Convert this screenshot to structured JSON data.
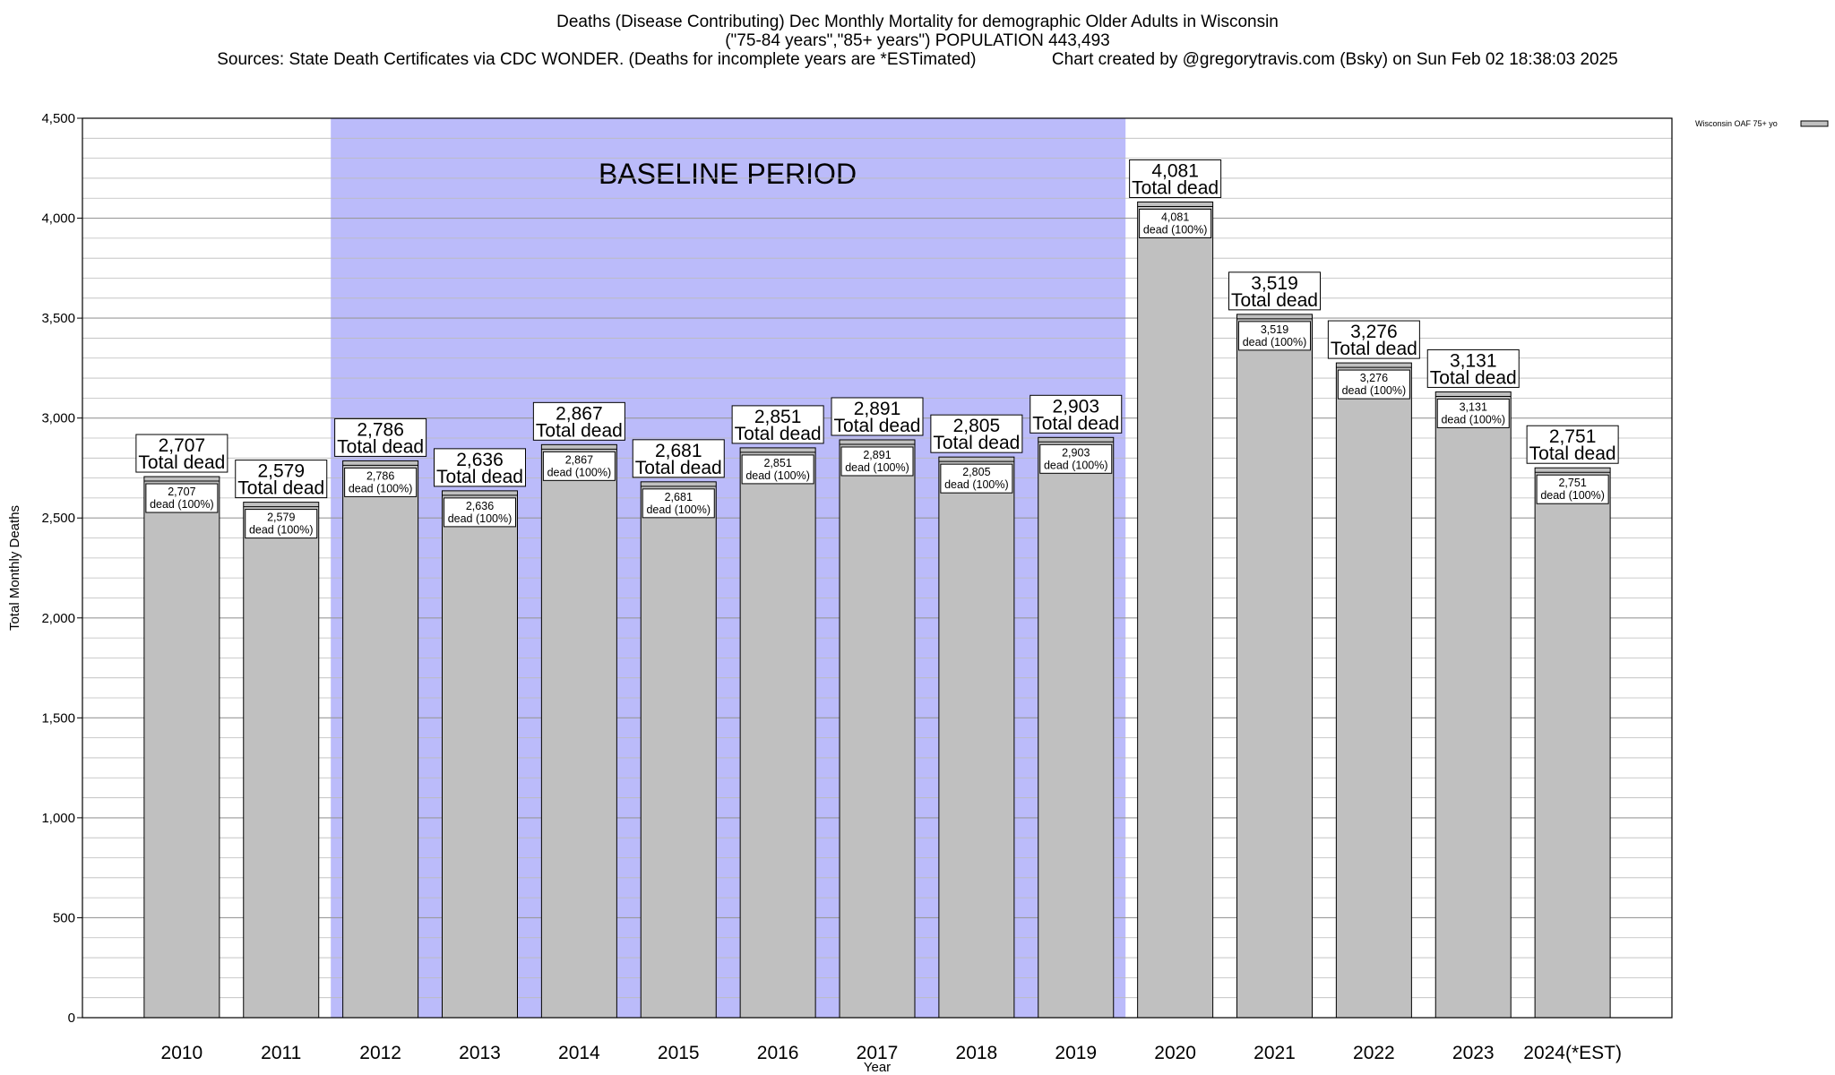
{
  "header": {
    "title_line1": "Deaths (Disease Contributing) Dec Monthly Mortality for demographic Older Adults in Wisconsin",
    "title_line2": "(\"75-84 years\",\"85+ years\") POPULATION 443,493",
    "sources": "Sources: State Death Certificates via CDC WONDER. (Deaths for incomplete years are *ESTimated)",
    "credit": "Chart created by @gregorytravis.com (Bsky) on Sun Feb 02 18:38:03 2025"
  },
  "chart_data": {
    "type": "bar",
    "xlabel": "Year",
    "ylabel": "Total Monthly Deaths",
    "ylim": [
      0,
      4500
    ],
    "yticks": [
      0,
      500,
      1000,
      1500,
      2000,
      2500,
      3000,
      3500,
      4000,
      4500
    ],
    "ytick_labels": [
      "0",
      "500",
      "1,000",
      "1,500",
      "2,000",
      "2,500",
      "3,000",
      "3,500",
      "4,000",
      "4,500"
    ],
    "grid": true,
    "legend": {
      "position": "top-right",
      "entries": [
        "Wisconsin OAF 75+ yo"
      ]
    },
    "categories": [
      "2010",
      "2011",
      "2012",
      "2013",
      "2014",
      "2015",
      "2016",
      "2017",
      "2018",
      "2019",
      "2020",
      "2021",
      "2022",
      "2023",
      "2024(*EST)"
    ],
    "series": [
      {
        "name": "Wisconsin OAF 75+ yo",
        "values": [
          2707,
          2579,
          2786,
          2636,
          2867,
          2681,
          2851,
          2891,
          2805,
          2903,
          4081,
          3519,
          3276,
          3131,
          2751
        ]
      }
    ],
    "value_labels": [
      "2,707",
      "2,579",
      "2,786",
      "2,636",
      "2,867",
      "2,681",
      "2,851",
      "2,891",
      "2,805",
      "2,903",
      "4,081",
      "3,519",
      "3,276",
      "3,131",
      "2,751"
    ],
    "total_label": "Total dead",
    "inner_label": "dead (100%)",
    "shaded_region": {
      "label": "BASELINE PERIOD",
      "from": "2012",
      "to": "2019"
    },
    "colors": {
      "bar": "#c0c0c0",
      "baseline": "#bbbbfa",
      "grid": "#bbbbbb"
    }
  }
}
